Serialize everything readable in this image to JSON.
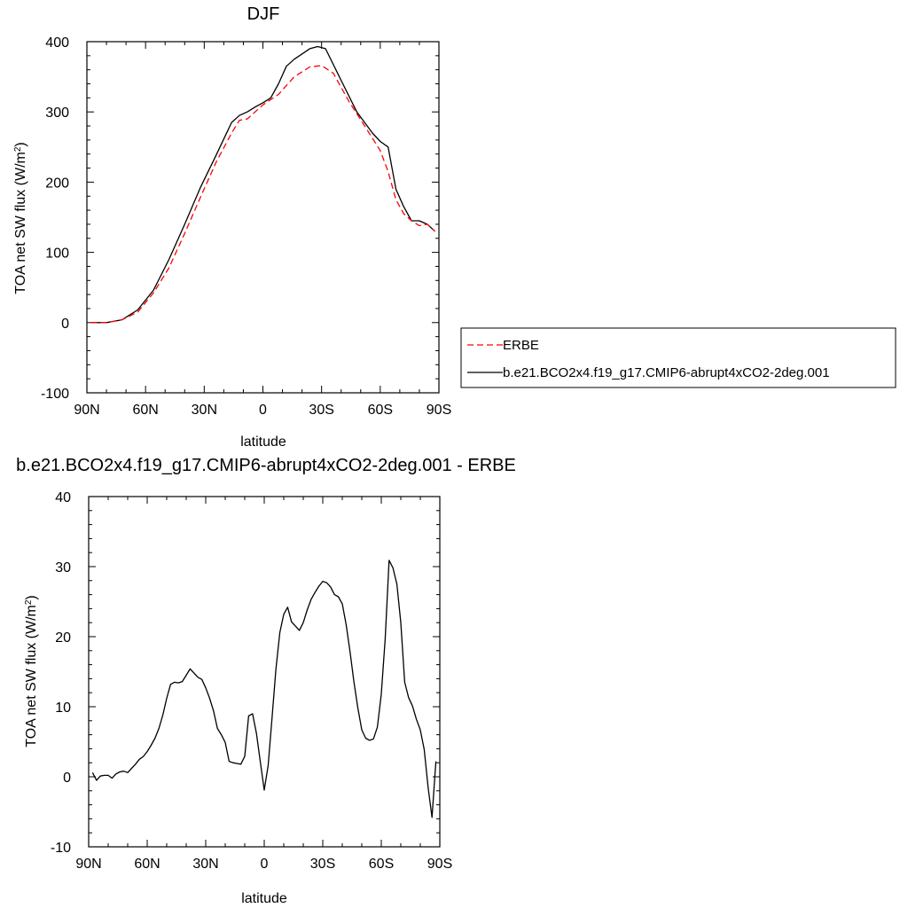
{
  "chart_data": [
    {
      "type": "line",
      "title": "DJF",
      "xlabel": "latitude",
      "ylabel_main": "TOA net SW flux (W/m",
      "ylabel_sup": "2",
      "ylabel_close": ")",
      "xlim": [
        90,
        -90
      ],
      "ylim": [
        -100,
        400
      ],
      "xticks": [
        90,
        60,
        30,
        0,
        -30,
        -60,
        -90
      ],
      "xtick_labels": [
        "90N",
        "60N",
        "30N",
        "0",
        "30S",
        "60S",
        "90S"
      ],
      "yticks": [
        -100,
        0,
        100,
        200,
        300,
        400
      ],
      "ytick_labels": [
        "-100",
        "0",
        "100",
        "200",
        "300",
        "400"
      ],
      "grid": false,
      "legend": "right",
      "series": [
        {
          "name": "ERBE",
          "color": "#ff0000",
          "dash": "dashed",
          "x": [
            88,
            80,
            72,
            64,
            56,
            48,
            40,
            32,
            24,
            16,
            12,
            8,
            4,
            0,
            -8,
            -16,
            -24,
            -30,
            -36,
            -44,
            -52,
            -60,
            -64,
            -68,
            -72,
            -76,
            -80,
            -84,
            -88
          ],
          "y": [
            0,
            0,
            4,
            15,
            42,
            78,
            127,
            178,
            228,
            270,
            288,
            290,
            300,
            310,
            325,
            350,
            364,
            366,
            355,
            315,
            280,
            245,
            215,
            175,
            155,
            145,
            138,
            140,
            130
          ]
        },
        {
          "name": "b.e21.BCO2x4.f19_g17.CMIP6-abrupt4xCO2-2deg.001",
          "color": "#000000",
          "dash": "solid",
          "x": [
            88,
            80,
            72,
            64,
            56,
            48,
            40,
            32,
            24,
            16,
            12,
            8,
            4,
            0,
            -4,
            -8,
            -12,
            -16,
            -24,
            -28,
            -32,
            -40,
            -48,
            -56,
            -60,
            -64,
            -68,
            -72,
            -76,
            -80,
            -84,
            -88
          ],
          "y": [
            0,
            0,
            4,
            18,
            46,
            90,
            140,
            192,
            238,
            285,
            295,
            300,
            307,
            313,
            320,
            340,
            365,
            375,
            390,
            393,
            390,
            345,
            300,
            270,
            258,
            250,
            190,
            165,
            145,
            145,
            140,
            130
          ]
        }
      ]
    },
    {
      "type": "line",
      "title": "b.e21.BCO2x4.f19_g17.CMIP6-abrupt4xCO2-2deg.001 - ERBE",
      "xlabel": "latitude",
      "ylabel_main": "TOA net SW flux (W/m",
      "ylabel_sup": "2",
      "ylabel_close": ")",
      "xlim": [
        90,
        -90
      ],
      "ylim": [
        -10,
        40
      ],
      "xticks": [
        90,
        60,
        30,
        0,
        -30,
        -60,
        -90
      ],
      "xtick_labels": [
        "90N",
        "60N",
        "30N",
        "0",
        "30S",
        "60S",
        "90S"
      ],
      "yticks": [
        -10,
        0,
        10,
        20,
        30,
        40
      ],
      "ytick_labels": [
        "-10",
        "0",
        "10",
        "20",
        "30",
        "40"
      ],
      "grid": false,
      "series": [
        {
          "color": "#000000",
          "dash": "solid",
          "x": [
            88,
            86,
            84,
            82,
            80,
            78,
            76,
            74,
            72,
            70,
            68,
            66,
            64,
            62,
            60,
            58,
            56,
            54,
            52,
            50,
            48,
            46,
            44,
            42,
            40,
            38,
            36,
            34,
            32,
            30,
            28,
            26,
            24,
            22,
            20,
            18,
            16,
            14,
            12,
            10,
            8,
            6,
            4,
            2,
            0,
            -2,
            -4,
            -6,
            -8,
            -10,
            -12,
            -14,
            -16,
            -18,
            -20,
            -22,
            -24,
            -26,
            -28,
            -30,
            -32,
            -34,
            -36,
            -38,
            -40,
            -42,
            -44,
            -46,
            -48,
            -50,
            -52,
            -54,
            -56,
            -58,
            -60,
            -62,
            -64,
            -66,
            -68,
            -70,
            -72,
            -74,
            -76,
            -78,
            -80,
            -82,
            -84,
            -86,
            -88
          ],
          "y": [
            0.6,
            -0.5,
            0.1,
            0.2,
            0.2,
            -0.2,
            0.4,
            0.7,
            0.8,
            0.6,
            1.2,
            1.8,
            2.5,
            2.9,
            3.6,
            4.5,
            5.5,
            6.9,
            8.8,
            11.2,
            13.2,
            13.5,
            13.4,
            13.6,
            14.5,
            15.4,
            14.8,
            14.2,
            13.9,
            12.7,
            11.2,
            9.4,
            6.9,
            6.0,
            4.9,
            2.2,
            2.0,
            1.9,
            1.8,
            2.9,
            8.7,
            9.0,
            6.2,
            2.1,
            -1.9,
            1.6,
            8.4,
            15.4,
            20.6,
            23.2,
            24.2,
            22.1,
            21.5,
            20.9,
            22.0,
            23.8,
            25.3,
            26.3,
            27.2,
            27.9,
            27.7,
            27.1,
            26.0,
            25.7,
            24.7,
            21.7,
            17.8,
            13.5,
            9.8,
            6.7,
            5.5,
            5.2,
            5.4,
            7.1,
            11.8,
            19.7,
            30.9,
            29.8,
            27.5,
            22.0,
            13.5,
            11.3,
            10.1,
            8.2,
            6.7,
            3.9,
            -1.5,
            -5.8,
            2.2
          ]
        }
      ]
    }
  ]
}
